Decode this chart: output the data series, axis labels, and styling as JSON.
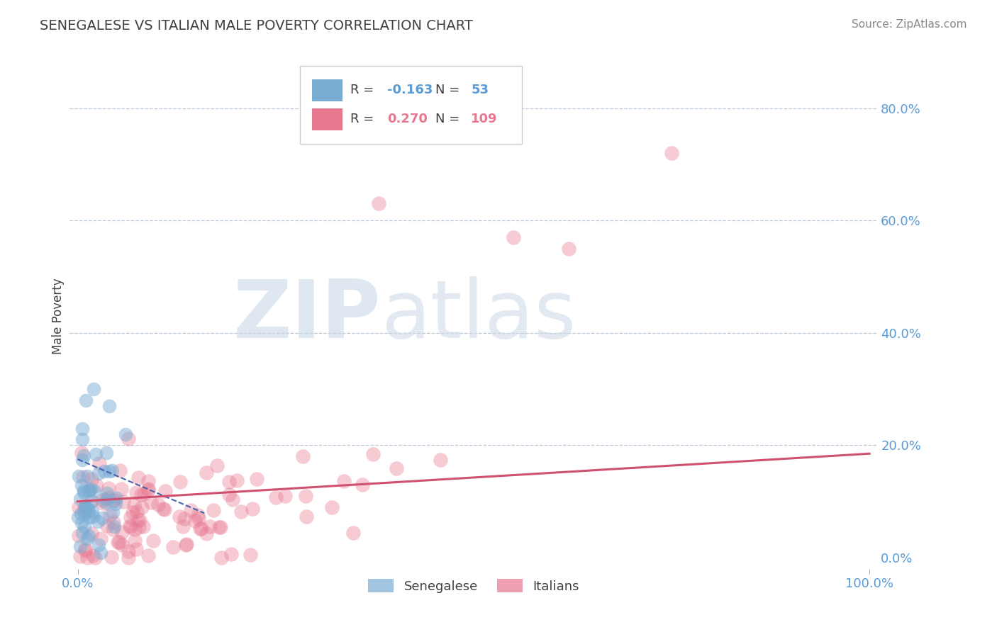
{
  "title": "SENEGALESE VS ITALIAN MALE POVERTY CORRELATION CHART",
  "source_text": "Source: ZipAtlas.com",
  "ylabel": "Male Poverty",
  "xlim": [
    -0.01,
    1.01
  ],
  "ylim": [
    -0.02,
    0.88
  ],
  "yticks": [
    0.0,
    0.2,
    0.4,
    0.6,
    0.8
  ],
  "ytick_labels": [
    "0.0%",
    "20.0%",
    "40.0%",
    "60.0%",
    "80.0%"
  ],
  "xticks": [
    0.0,
    1.0
  ],
  "xtick_labels": [
    "0.0%",
    "100.0%"
  ],
  "axis_color": "#5b9bd5",
  "grid_color": "#b8c8d8",
  "background_color": "#ffffff",
  "title_fontsize": 14,
  "title_color": "#404040",
  "senegalese_color": "#7aadd4",
  "italian_color": "#e87890",
  "trend_senegalese_color": "#4466aa",
  "trend_italian_color": "#d05070",
  "senegalese_seed": 42,
  "italian_seed": 7
}
